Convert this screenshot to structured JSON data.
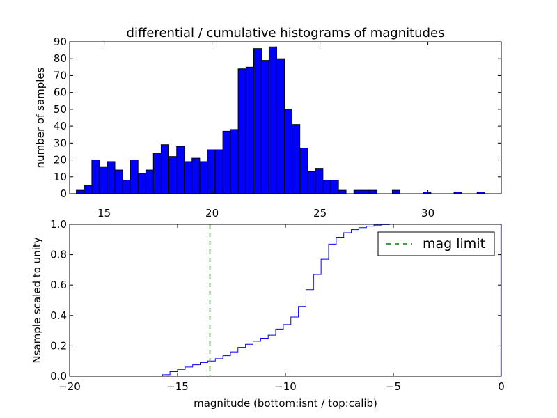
{
  "figure_title": "differential / cumulative histograms of magnitudes",
  "colors": {
    "bar_fill": "#0000ff",
    "bar_edge": "#000000",
    "cdf_line": "#0000ff",
    "limit_line": "#008000"
  },
  "chart_data": [
    {
      "type": "bar",
      "title": "differential / cumulative histograms of magnitudes",
      "xlabel": "",
      "ylabel": "number of samples",
      "xlim": [
        13.4,
        33.4
      ],
      "ylim": [
        0,
        90
      ],
      "xticks": [
        15,
        20,
        25,
        30
      ],
      "yticks": [
        0,
        10,
        20,
        30,
        40,
        50,
        60,
        70,
        80,
        90
      ],
      "bin_width": 0.357,
      "bin_left_edges": [
        13.71,
        14.07,
        14.43,
        14.78,
        15.14,
        15.5,
        15.86,
        16.21,
        16.57,
        16.93,
        17.28,
        17.64,
        18.0,
        18.36,
        18.71,
        19.07,
        19.43,
        19.78,
        20.14,
        20.5,
        20.86,
        21.21,
        21.57,
        21.93,
        22.28,
        22.64,
        23.0,
        23.35,
        23.71,
        24.07,
        24.43,
        24.78,
        25.14,
        25.5,
        25.85,
        26.21,
        26.57,
        26.93,
        27.28,
        27.64,
        28.0,
        28.35,
        28.71,
        29.07,
        29.42,
        29.78,
        30.14,
        30.5,
        30.85,
        31.21,
        31.57,
        31.92,
        32.28,
        32.64
      ],
      "values": [
        2,
        5,
        20,
        16,
        19,
        14,
        8,
        20,
        12,
        14,
        24,
        29,
        22,
        28,
        19,
        21,
        19,
        26,
        26,
        37,
        38,
        74,
        75,
        86,
        79,
        87,
        80,
        50,
        41,
        27,
        13,
        15,
        8,
        8,
        2,
        0,
        2,
        2,
        2,
        0,
        0,
        2,
        0,
        0,
        0,
        1,
        0,
        0,
        0,
        1,
        0,
        0,
        1,
        0
      ]
    },
    {
      "type": "line",
      "drawstyle": "steps-post",
      "xlabel": "magnitude (bottom:isnt / top:calib)",
      "ylabel": "Nsample scaled to unity",
      "xlim": [
        -20,
        0
      ],
      "ylim": [
        0.0,
        1.0
      ],
      "xticks": [
        -20,
        -15,
        -10,
        -5,
        0
      ],
      "yticks": [
        "0.0",
        "0.2",
        "0.4",
        "0.6",
        "0.8",
        "1.0"
      ],
      "series": [
        {
          "name": "cumulative",
          "x": [
            -20,
            -15.7,
            -15.35,
            -15.0,
            -14.65,
            -14.3,
            -13.95,
            -13.6,
            -13.25,
            -12.9,
            -12.55,
            -12.2,
            -11.85,
            -11.5,
            -11.15,
            -10.8,
            -10.45,
            -10.1,
            -9.75,
            -9.4,
            -9.05,
            -8.7,
            -8.35,
            -8.0,
            -7.65,
            -7.3,
            -6.95,
            -6.6,
            -6.25,
            -5.9,
            -5.55,
            -5.2,
            -0.1
          ],
          "y": [
            0.0,
            0.01,
            0.03,
            0.045,
            0.06,
            0.075,
            0.09,
            0.1,
            0.115,
            0.135,
            0.16,
            0.19,
            0.21,
            0.23,
            0.25,
            0.27,
            0.31,
            0.34,
            0.39,
            0.46,
            0.57,
            0.67,
            0.77,
            0.87,
            0.915,
            0.945,
            0.965,
            0.978,
            0.988,
            0.995,
            0.998,
            1.0,
            1.0
          ]
        }
      ],
      "vline": {
        "x": -13.5,
        "style": "dashed",
        "label": "mag limit"
      },
      "legend": {
        "position": "top-right",
        "entries": [
          "mag limit"
        ]
      }
    }
  ]
}
